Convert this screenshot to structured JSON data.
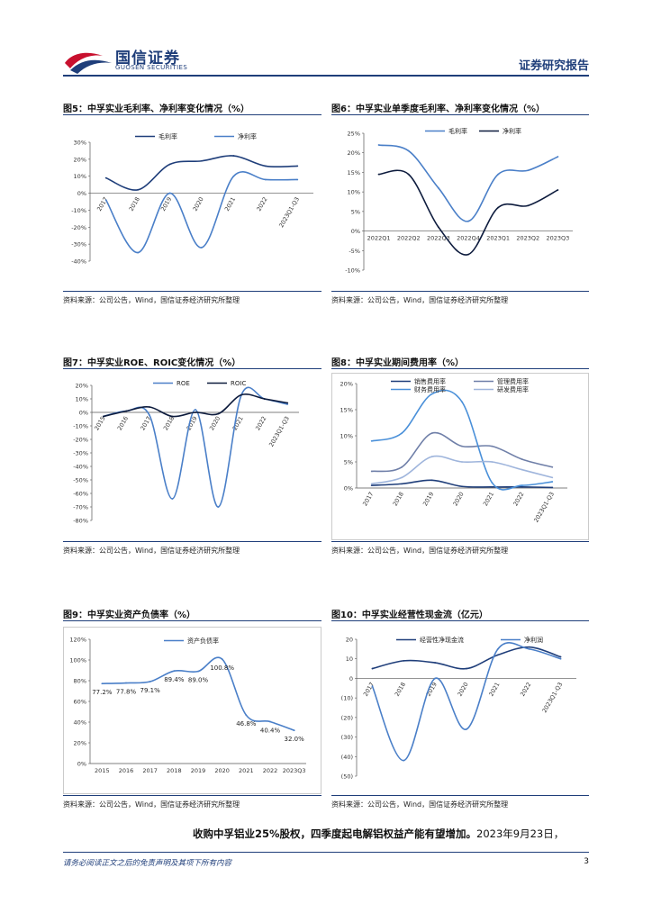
{
  "header": {
    "brand_cn": "国信证券",
    "brand_en": "GUOSEN SECURITIES",
    "report_type": "证券研究报告"
  },
  "figures": [
    {
      "title": "图5：中孚实业毛利率、净利率变化情况（%）",
      "source": "资料来源：公司公告，Wind，国信证券经济研究所整理"
    },
    {
      "title": "图6：中孚实业单季度毛利率、净利率变化情况（%）",
      "source": "资料来源：公司公告，Wind，国信证券经济研究所整理"
    },
    {
      "title": "图7：中孚实业ROE、ROIC变化情况（%）",
      "source": "资料来源：公司公告，Wind，国信证券经济研究所整理"
    },
    {
      "title": "图8：中孚实业期间费用率（%）",
      "source": "资料来源：公司公告，Wind，国信证券经济研究所整理"
    },
    {
      "title": "图9：中孚实业资产负债率（%）",
      "source": "资料来源：公司公告，Wind，国信证券经济研究所整理"
    },
    {
      "title": "图10：中孚实业经营性现金流（亿元）",
      "source": "资料来源：公司公告，Wind，国信证券经济研究所整理"
    }
  ],
  "chart_data": [
    {
      "type": "line",
      "title": "图5：中孚实业毛利率、净利率变化情况（%）",
      "categories": [
        "2017",
        "2018",
        "2019",
        "2020",
        "2021",
        "2022",
        "2023Q1-Q3"
      ],
      "tick_labels": [
        "30%",
        "20%",
        "10%",
        "0%",
        "-10%",
        "-20%",
        "-30%",
        "-40%"
      ],
      "ylim": [
        -40,
        30
      ],
      "series": [
        {
          "name": "毛利率",
          "color": "#1f3e7a",
          "values": [
            9,
            2,
            17,
            19,
            22,
            16,
            16
          ]
        },
        {
          "name": "净利率",
          "color": "#4a7fc8",
          "values": [
            -4,
            -35,
            0,
            -32,
            10,
            8,
            8
          ]
        }
      ],
      "legend": "top"
    },
    {
      "type": "line",
      "title": "图6：中孚实业单季度毛利率、净利率变化情况（%）",
      "categories": [
        "2022Q1",
        "2022Q2",
        "2022Q3",
        "2022Q4",
        "2023Q1",
        "2023Q2",
        "2023Q3"
      ],
      "tick_labels": [
        "25%",
        "20%",
        "15%",
        "10%",
        "5%",
        "0%",
        "-5%",
        "-10%"
      ],
      "ylim": [
        -10,
        25
      ],
      "series": [
        {
          "name": "毛利率",
          "color": "#4a7fc8",
          "values": [
            22,
            20.5,
            11,
            2.5,
            14.5,
            15.5,
            19
          ]
        },
        {
          "name": "净利率",
          "color": "#0d1b3d",
          "values": [
            14.5,
            14.5,
            1,
            -6,
            6,
            6.5,
            10.5
          ]
        }
      ],
      "legend": "top"
    },
    {
      "type": "line",
      "title": "图7：中孚实业ROE、ROIC变化情况（%）",
      "categories": [
        "2015",
        "2016",
        "2017",
        "2018",
        "2019",
        "2020",
        "2021",
        "2022",
        "2023Q1-Q3"
      ],
      "tick_labels": [
        "20%",
        "10%",
        "0%",
        "-10%",
        "-20%",
        "-30%",
        "-40%",
        "-50%",
        "-60%",
        "-70%",
        "-80%"
      ],
      "ylim": [
        -80,
        20
      ],
      "series": [
        {
          "name": "ROE",
          "color": "#4a7fc8",
          "values": [
            -3,
            1,
            -2,
            -64,
            2,
            -70,
            13,
            10,
            6
          ]
        },
        {
          "name": "ROIC",
          "color": "#0d1b3d",
          "values": [
            -3,
            1,
            4,
            -3,
            0,
            -1,
            13,
            10,
            7
          ]
        }
      ],
      "legend": "top"
    },
    {
      "type": "line",
      "title": "图8：中孚实业期间费用率（%）",
      "categories": [
        "2017",
        "2018",
        "2019",
        "2020",
        "2021",
        "2022",
        "2023Q1-Q3"
      ],
      "tick_labels": [
        "20%",
        "15%",
        "10%",
        "5%",
        "0%"
      ],
      "ylim": [
        0,
        20
      ],
      "series": [
        {
          "name": "销售费用率",
          "color": "#1f3e7a",
          "values": [
            0.5,
            0.8,
            1.5,
            0.3,
            0.2,
            0.2,
            0.1
          ]
        },
        {
          "name": "管理费用率",
          "color": "#6f7fa8",
          "values": [
            3.2,
            4,
            10.5,
            8,
            8,
            5.5,
            4
          ]
        },
        {
          "name": "财务费用率",
          "color": "#4a90d9",
          "values": [
            9,
            10.5,
            18,
            16.5,
            1,
            0.5,
            1.2
          ]
        },
        {
          "name": "研发费用率",
          "color": "#9fb5dc",
          "values": [
            0.8,
            2,
            6,
            5,
            5,
            3.5,
            2
          ]
        }
      ],
      "legend": "top"
    },
    {
      "type": "line",
      "title": "图9：中孚实业资产负债率（%）",
      "categories": [
        "2015",
        "2016",
        "2017",
        "2018",
        "2019",
        "2020",
        "2021",
        "2022",
        "2023Q3"
      ],
      "tick_labels": [
        "120%",
        "100%",
        "80%",
        "60%",
        "40%",
        "20%",
        "0%"
      ],
      "ylim": [
        0,
        120
      ],
      "series": [
        {
          "name": "资产负债率",
          "color": "#4a7fc8",
          "values": [
            77.2,
            77.8,
            79.1,
            89.4,
            89.0,
            100.8,
            46.8,
            40.4,
            32.0
          ]
        }
      ],
      "data_labels": [
        "77.2%",
        "77.8%",
        "79.1%",
        "89.4%",
        "89.0%",
        "100.8%",
        "46.8%",
        "40.4%",
        "32.0%"
      ],
      "legend": "top"
    },
    {
      "type": "line",
      "title": "图10：中孚实业经营性现金流（亿元）",
      "categories": [
        "2017",
        "2018",
        "2019",
        "2020",
        "2021",
        "2022",
        "2023Q1-Q3"
      ],
      "tick_labels": [
        "20",
        "10",
        "0",
        "(10)",
        "(20)",
        "(30)",
        "(40)",
        "(50)"
      ],
      "ylim": [
        -50,
        20
      ],
      "series": [
        {
          "name": "经营性净现金流",
          "color": "#1f3e7a",
          "values": [
            5,
            9,
            8,
            5,
            12,
            16,
            11
          ]
        },
        {
          "name": "净利润",
          "color": "#4a7fc8",
          "values": [
            -4,
            -42,
            0,
            -26,
            15,
            15,
            10
          ]
        }
      ],
      "legend": "top"
    }
  ],
  "body_text": {
    "bold": "收购中孚铝业25%股权，四季度起电解铝权益产能有望增加。",
    "rest": "2023年9月23日，"
  },
  "footer": {
    "disclaimer": "请务必阅读正文之后的免责声明及其项下所有内容",
    "page": "3"
  }
}
